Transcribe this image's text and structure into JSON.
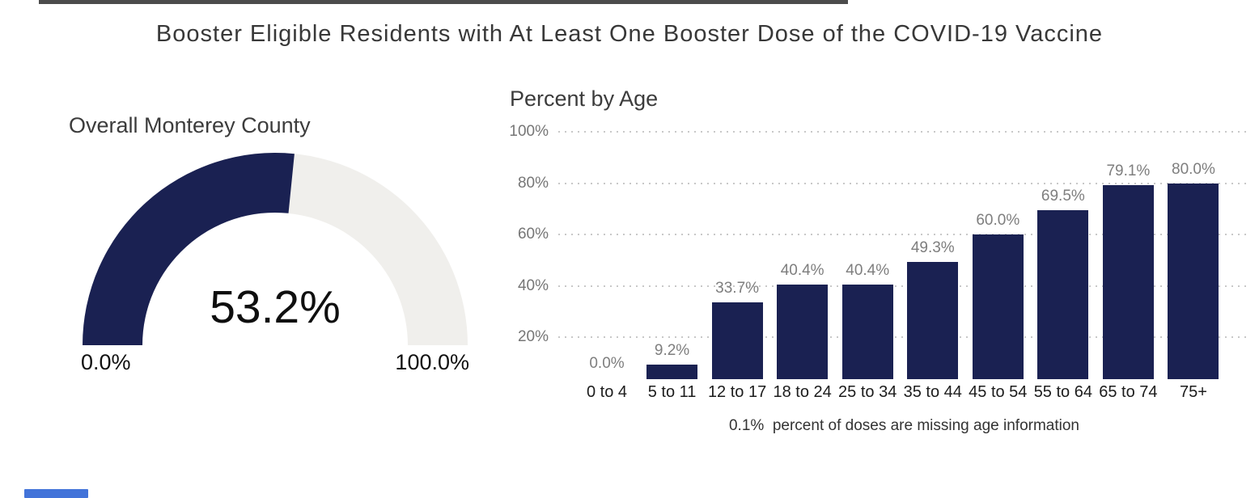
{
  "page": {
    "title": "Booster Eligible Residents with At Least One Booster Dose of the COVID-19 Vaccine"
  },
  "colors": {
    "navy": "#1a2152",
    "gauge_track": "#f0efec",
    "gridline": "#c8c8c8",
    "value_label_gray": "#7e7e7e",
    "heading_gray": "#3c3c3c",
    "top_bar_gray": "#4c4c4c",
    "scroll_thumb_blue": "#4273d9"
  },
  "chart_data": [
    {
      "type": "gauge",
      "title": "Overall Monterey County",
      "value": 53.2,
      "unit": "%",
      "range": [
        0,
        100
      ],
      "center_label": "53.2%",
      "min_label": "0.0%",
      "max_label": "100.0%"
    },
    {
      "type": "bar",
      "title": "Percent by Age",
      "categories": [
        "0 to 4",
        "5 to 11",
        "12 to 17",
        "18 to 24",
        "25 to 34",
        "35 to 44",
        "45 to 54",
        "55 to 64",
        "65 to 74",
        "75+"
      ],
      "values": [
        0.0,
        9.2,
        33.7,
        40.4,
        40.4,
        49.3,
        60.0,
        69.5,
        79.1,
        80.0
      ],
      "value_labels": [
        "0.0%",
        "9.2%",
        "33.7%",
        "40.4%",
        "40.4%",
        "49.3%",
        "60.0%",
        "69.5%",
        "79.1%",
        "80.0%"
      ],
      "ytick_values": [
        100,
        80,
        60,
        40,
        20
      ],
      "ytick_labels": [
        "100%",
        "80%",
        "60%",
        "40%",
        "20%"
      ],
      "ylim": [
        0,
        100
      ],
      "grid": "horizontal-dotted",
      "legend": "none",
      "footnote": "0.1%  percent of doses are missing age information"
    }
  ]
}
